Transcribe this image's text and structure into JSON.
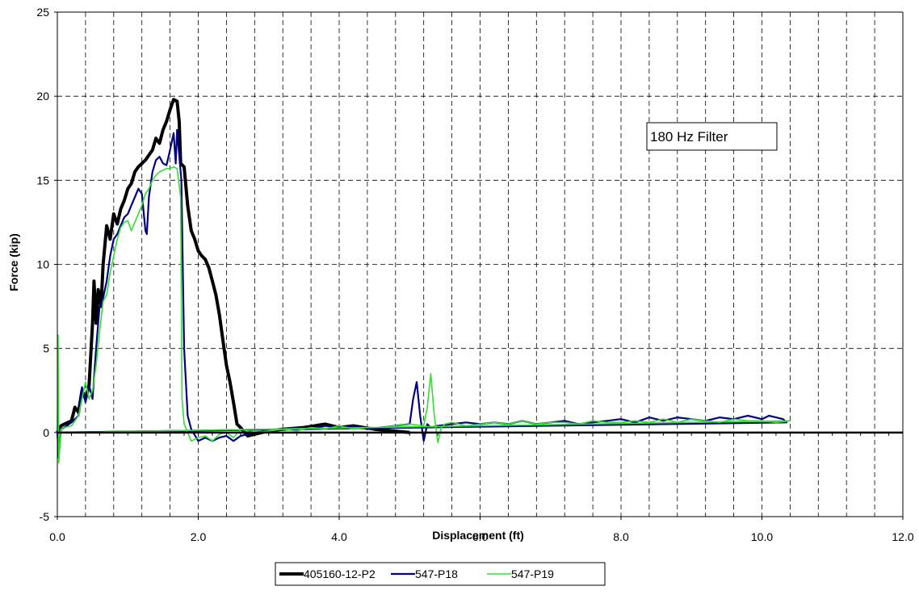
{
  "chart_data": {
    "type": "line",
    "title": "",
    "xlabel": "Displacement (ft)",
    "ylabel": "Force (kip)",
    "xlim": [
      0,
      12
    ],
    "ylim": [
      -5,
      25
    ],
    "x_ticks": [
      0,
      2,
      4,
      6,
      8,
      10,
      12
    ],
    "x_tick_labels": [
      "0.0",
      "2.0",
      "4.0",
      "6.0",
      "8.0",
      "10.0",
      "12.0"
    ],
    "y_ticks": [
      -5,
      0,
      5,
      10,
      15,
      20,
      25
    ],
    "y_tick_labels": [
      "-5",
      "0",
      "5",
      "10",
      "15",
      "20",
      "25"
    ],
    "grid": true,
    "legend_position": "bottom-center",
    "annotation": "180 Hz Filter",
    "series": [
      {
        "name": "405160-12-P2",
        "color": "#000000",
        "x": [
          0.0,
          0.05,
          0.1,
          0.2,
          0.25,
          0.3,
          0.35,
          0.4,
          0.45,
          0.5,
          0.52,
          0.55,
          0.58,
          0.62,
          0.65,
          0.7,
          0.75,
          0.8,
          0.85,
          0.9,
          0.95,
          1.0,
          1.05,
          1.1,
          1.15,
          1.2,
          1.25,
          1.3,
          1.35,
          1.4,
          1.45,
          1.5,
          1.55,
          1.6,
          1.65,
          1.7,
          1.73,
          1.75,
          1.8,
          1.85,
          1.9,
          1.95,
          2.0,
          2.05,
          2.1,
          2.15,
          2.2,
          2.25,
          2.3,
          2.35,
          2.4,
          2.45,
          2.5,
          2.55,
          2.6,
          2.7,
          2.8,
          3.0,
          3.2,
          3.5,
          3.8,
          4.0,
          4.2,
          4.5,
          5.0
        ],
        "y": [
          0.0,
          0.4,
          0.5,
          0.7,
          1.5,
          1.2,
          2.5,
          2.0,
          2.8,
          6.5,
          9.0,
          6.5,
          8.5,
          7.5,
          10.0,
          12.3,
          11.5,
          13.0,
          12.4,
          13.3,
          13.8,
          14.5,
          14.8,
          15.5,
          15.8,
          16.0,
          16.2,
          16.5,
          16.8,
          17.5,
          17.2,
          18.0,
          18.5,
          19.2,
          19.8,
          19.7,
          18.5,
          16.0,
          15.8,
          13.5,
          12.0,
          11.5,
          10.8,
          10.5,
          10.3,
          9.8,
          9.0,
          8.2,
          7.0,
          5.5,
          4.0,
          3.0,
          1.8,
          0.5,
          0.3,
          -0.2,
          -0.1,
          0.1,
          0.2,
          0.3,
          0.5,
          0.3,
          0.4,
          0.2,
          0.0
        ]
      },
      {
        "name": "547-P18",
        "color": "#000080",
        "x": [
          0.0,
          0.02,
          0.05,
          0.1,
          0.2,
          0.3,
          0.35,
          0.4,
          0.45,
          0.5,
          0.55,
          0.6,
          0.65,
          0.7,
          0.75,
          0.8,
          0.85,
          0.9,
          0.95,
          1.0,
          1.05,
          1.1,
          1.15,
          1.2,
          1.25,
          1.27,
          1.3,
          1.35,
          1.4,
          1.45,
          1.5,
          1.55,
          1.6,
          1.65,
          1.68,
          1.7,
          1.73,
          1.76,
          1.8,
          1.85,
          1.9,
          2.0,
          2.1,
          2.2,
          2.3,
          2.4,
          2.5,
          2.6,
          2.8,
          3.0,
          3.2,
          3.4,
          3.6,
          3.8,
          4.0,
          4.2,
          4.4,
          4.6,
          4.8,
          5.0,
          5.05,
          5.1,
          5.15,
          5.2,
          5.25,
          5.3,
          5.4,
          5.6,
          5.8,
          6.0,
          6.2,
          6.4,
          6.6,
          6.8,
          7.0,
          7.2,
          7.4,
          7.6,
          7.8,
          8.0,
          8.2,
          8.4,
          8.6,
          8.8,
          9.0,
          9.2,
          9.4,
          9.6,
          9.8,
          10.0,
          10.1,
          10.2,
          10.3,
          10.35,
          0.0
        ],
        "y": [
          0.0,
          -1.5,
          0.2,
          0.3,
          0.6,
          1.0,
          2.7,
          1.8,
          2.8,
          2.0,
          5.0,
          7.5,
          8.0,
          9.0,
          10.5,
          11.5,
          11.8,
          12.3,
          12.8,
          13.0,
          13.5,
          14.0,
          14.5,
          14.2,
          12.0,
          11.8,
          14.0,
          15.5,
          16.2,
          16.4,
          16.0,
          15.9,
          16.8,
          17.8,
          16.0,
          18.0,
          16.5,
          15.0,
          5.0,
          1.0,
          0.2,
          -0.5,
          -0.3,
          -0.5,
          -0.3,
          -0.2,
          -0.5,
          -0.2,
          0.0,
          0.1,
          0.2,
          0.3,
          0.2,
          0.4,
          0.3,
          0.4,
          0.2,
          0.3,
          0.4,
          0.5,
          2.0,
          3.0,
          1.0,
          -0.5,
          0.5,
          0.3,
          0.4,
          0.5,
          0.6,
          0.5,
          0.6,
          0.5,
          0.7,
          0.5,
          0.6,
          0.7,
          0.5,
          0.6,
          0.7,
          0.8,
          0.6,
          0.9,
          0.7,
          0.9,
          0.8,
          0.7,
          0.9,
          0.8,
          1.0,
          0.8,
          1.0,
          0.9,
          0.8,
          0.6,
          0.0
        ]
      },
      {
        "name": "547-P19",
        "color": "#33dd33",
        "x": [
          0.0,
          0.01,
          0.02,
          0.05,
          0.1,
          0.2,
          0.3,
          0.35,
          0.4,
          0.45,
          0.5,
          0.55,
          0.6,
          0.65,
          0.7,
          0.75,
          0.8,
          0.85,
          0.9,
          0.95,
          1.0,
          1.05,
          1.1,
          1.15,
          1.2,
          1.25,
          1.3,
          1.35,
          1.4,
          1.45,
          1.5,
          1.55,
          1.6,
          1.65,
          1.7,
          1.75,
          1.77,
          1.8,
          1.85,
          1.9,
          2.0,
          2.1,
          2.2,
          2.3,
          2.4,
          2.5,
          2.6,
          2.8,
          3.0,
          3.2,
          3.4,
          3.6,
          3.8,
          4.0,
          4.2,
          4.4,
          4.6,
          4.8,
          5.0,
          5.2,
          5.25,
          5.3,
          5.35,
          5.4,
          5.45,
          5.5,
          5.6,
          5.8,
          6.0,
          6.2,
          6.4,
          6.6,
          6.8,
          7.0,
          7.2,
          7.4,
          7.6,
          7.8,
          8.0,
          8.2,
          8.4,
          8.6,
          8.8,
          9.0,
          9.2,
          9.4,
          9.6,
          9.8,
          10.0,
          10.2,
          10.4,
          0.0
        ],
        "y": [
          0.0,
          5.8,
          -1.8,
          0.2,
          0.3,
          0.4,
          1.0,
          2.0,
          3.0,
          2.0,
          2.5,
          4.0,
          6.0,
          7.8,
          8.2,
          9.5,
          10.5,
          11.5,
          12.2,
          12.5,
          12.6,
          12.0,
          12.5,
          13.0,
          13.5,
          14.2,
          14.5,
          15.0,
          15.3,
          15.5,
          15.6,
          15.7,
          15.7,
          15.8,
          15.7,
          14.0,
          2.0,
          0.5,
          0.0,
          -0.5,
          -0.3,
          -0.2,
          -0.5,
          -0.1,
          0.0,
          -0.3,
          0.2,
          0.0,
          0.1,
          0.2,
          0.1,
          0.3,
          0.2,
          0.4,
          0.2,
          0.3,
          0.3,
          0.4,
          0.5,
          0.4,
          1.5,
          3.5,
          1.0,
          -0.6,
          0.3,
          0.5,
          0.6,
          0.4,
          0.5,
          0.6,
          0.5,
          0.7,
          0.5,
          0.6,
          0.6,
          0.5,
          0.7,
          0.6,
          0.6,
          0.7,
          0.6,
          0.8,
          0.6,
          0.8,
          0.7,
          0.6,
          0.8,
          0.7,
          0.7,
          0.6,
          0.7,
          0.0
        ]
      }
    ]
  }
}
